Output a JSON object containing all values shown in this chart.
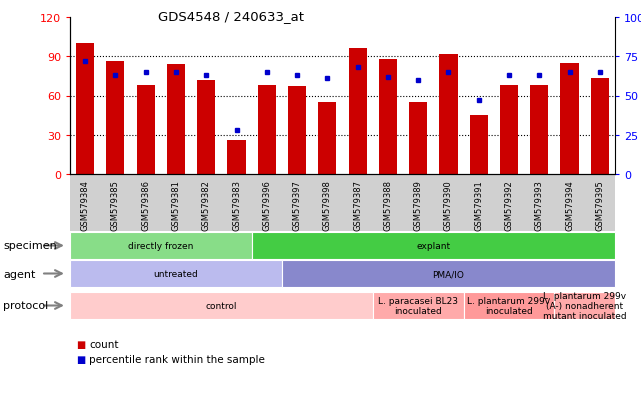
{
  "title": "GDS4548 / 240633_at",
  "gsm_ids": [
    "GSM579384",
    "GSM579385",
    "GSM579386",
    "GSM579381",
    "GSM579382",
    "GSM579383",
    "GSM579396",
    "GSM579397",
    "GSM579398",
    "GSM579387",
    "GSM579388",
    "GSM579389",
    "GSM579390",
    "GSM579391",
    "GSM579392",
    "GSM579393",
    "GSM579394",
    "GSM579395"
  ],
  "counts": [
    100,
    86,
    68,
    84,
    72,
    26,
    68,
    67,
    55,
    96,
    88,
    55,
    92,
    45,
    68,
    68,
    85,
    73
  ],
  "percentiles": [
    72,
    63,
    65,
    65,
    63,
    28,
    65,
    63,
    61,
    68,
    62,
    60,
    65,
    47,
    63,
    63,
    65,
    65
  ],
  "bar_color": "#cc0000",
  "dot_color": "#0000cc",
  "left_ylim": [
    0,
    120
  ],
  "right_ylim": [
    0,
    100
  ],
  "left_yticks": [
    0,
    30,
    60,
    90,
    120
  ],
  "right_yticks": [
    0,
    25,
    50,
    75,
    100
  ],
  "right_yticklabels": [
    "0",
    "25",
    "50",
    "75",
    "100%"
  ],
  "grid_values": [
    30,
    60,
    90
  ],
  "bg_color": "#ffffff",
  "xtick_bg": "#d0d0d0",
  "specimen_row": {
    "label": "specimen",
    "sections": [
      {
        "text": "directly frozen",
        "start": 0,
        "end": 6,
        "color": "#88dd88"
      },
      {
        "text": "explant",
        "start": 6,
        "end": 18,
        "color": "#44cc44"
      }
    ]
  },
  "agent_row": {
    "label": "agent",
    "sections": [
      {
        "text": "untreated",
        "start": 0,
        "end": 7,
        "color": "#bbbbee"
      },
      {
        "text": "PMA/IO",
        "start": 7,
        "end": 18,
        "color": "#8888cc"
      }
    ]
  },
  "protocol_row": {
    "label": "protocol",
    "sections": [
      {
        "text": "control",
        "start": 0,
        "end": 10,
        "color": "#ffcccc"
      },
      {
        "text": "L. paracasei BL23\ninoculated",
        "start": 10,
        "end": 13,
        "color": "#ffaaaa"
      },
      {
        "text": "L. plantarum 299v\ninoculated",
        "start": 13,
        "end": 16,
        "color": "#ff9999"
      },
      {
        "text": "L. plantarum 299v\n(A-) nonadherent\nmutant inoculated",
        "start": 16,
        "end": 18,
        "color": "#ffaaaa"
      }
    ]
  },
  "legend_items": [
    {
      "color": "#cc0000",
      "label": "count"
    },
    {
      "color": "#0000cc",
      "label": "percentile rank within the sample"
    }
  ]
}
